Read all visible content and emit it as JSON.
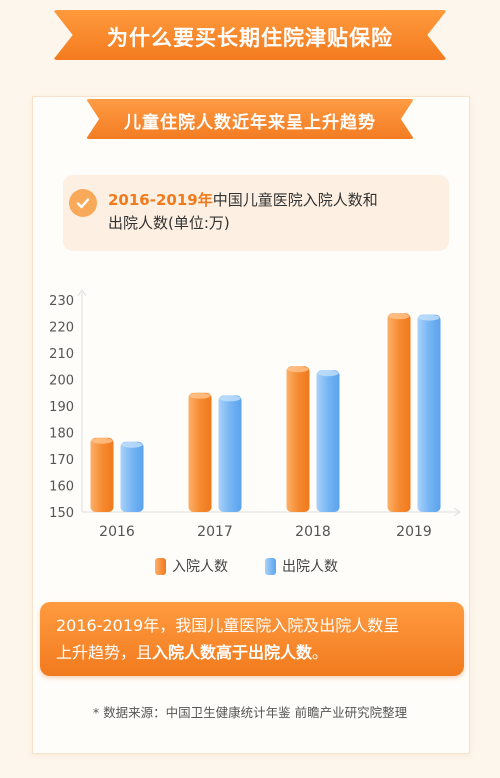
{
  "header": {
    "title": "为什么要买长期住院津贴保险"
  },
  "section": {
    "title": "儿童住院人数近年来呈上升趋势"
  },
  "description": {
    "highlight": "2016-2019年",
    "line1_rest": "中国儿童医院入院人数和",
    "line2": "出院人数(单位:万)",
    "check_icon": "check-circle-icon"
  },
  "chart_data": {
    "type": "bar",
    "categories": [
      "2016",
      "2017",
      "2018",
      "2019"
    ],
    "series": [
      {
        "name": "入院人数",
        "values": [
          178,
          195,
          205,
          225
        ],
        "color": "#f7913a"
      },
      {
        "name": "出院人数",
        "values": [
          176.5,
          194,
          203.5,
          224.5
        ],
        "color": "#6fb2f2"
      }
    ],
    "y_ticks": [
      "150",
      "160",
      "170",
      "180",
      "190",
      "200",
      "210",
      "220",
      "230"
    ],
    "ylim": [
      150,
      230
    ],
    "grid": false,
    "legend_position": "bottom-center"
  },
  "summary": {
    "line1": "2016-2019年，我国儿童医院入院及出院人数呈",
    "line2_a": "上升趋势，且",
    "line2_b": "入院人数高于出院人数",
    "line2_c": "。"
  },
  "source": "* 数据来源：中国卫生健康统计年鉴  前瞻产业研究院整理"
}
